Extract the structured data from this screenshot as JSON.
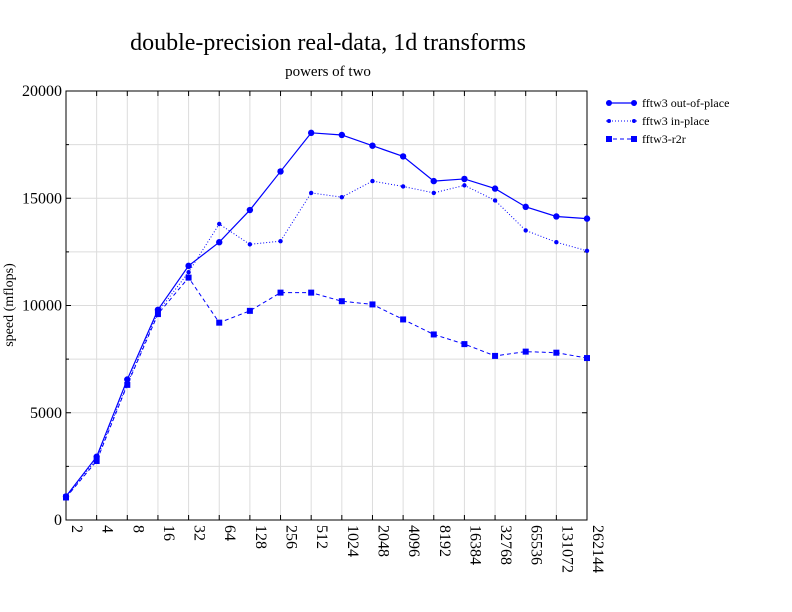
{
  "chart_data": {
    "type": "line",
    "title": "double-precision real-data, 1d transforms",
    "subtitle": "powers of two",
    "xlabel": "",
    "ylabel": "speed (mflops)",
    "categories": [
      "2",
      "4",
      "8",
      "16",
      "32",
      "64",
      "128",
      "256",
      "512",
      "1024",
      "2048",
      "4096",
      "8192",
      "16384",
      "32768",
      "65536",
      "131072",
      "262144"
    ],
    "ylim": [
      0,
      20000
    ],
    "yticks": [
      0,
      5000,
      10000,
      15000,
      20000
    ],
    "grid": true,
    "legend_position": "outside-top-right",
    "series": [
      {
        "name": "fftw3 out-of-place",
        "line": "solid",
        "marker": "circle",
        "values": [
          1100,
          2950,
          6550,
          9800,
          11850,
          12950,
          14450,
          16250,
          18050,
          17950,
          17450,
          16950,
          15800,
          15900,
          15450,
          14600,
          14150,
          14050
        ]
      },
      {
        "name": "fftw3 in-place",
        "line": "dotted",
        "marker": "dot",
        "values": [
          1050,
          2850,
          6350,
          9700,
          11550,
          13800,
          12850,
          13000,
          15250,
          15050,
          15800,
          15550,
          15250,
          15600,
          14900,
          13500,
          12950,
          12550
        ]
      },
      {
        "name": "fftw3-r2r",
        "line": "dashed",
        "marker": "square",
        "values": [
          1050,
          2750,
          6300,
          9600,
          11300,
          9200,
          9750,
          10600,
          10600,
          10200,
          10050,
          9350,
          8650,
          8200,
          7650,
          7850,
          7800,
          7550
        ]
      }
    ],
    "color": "#0000ff"
  }
}
